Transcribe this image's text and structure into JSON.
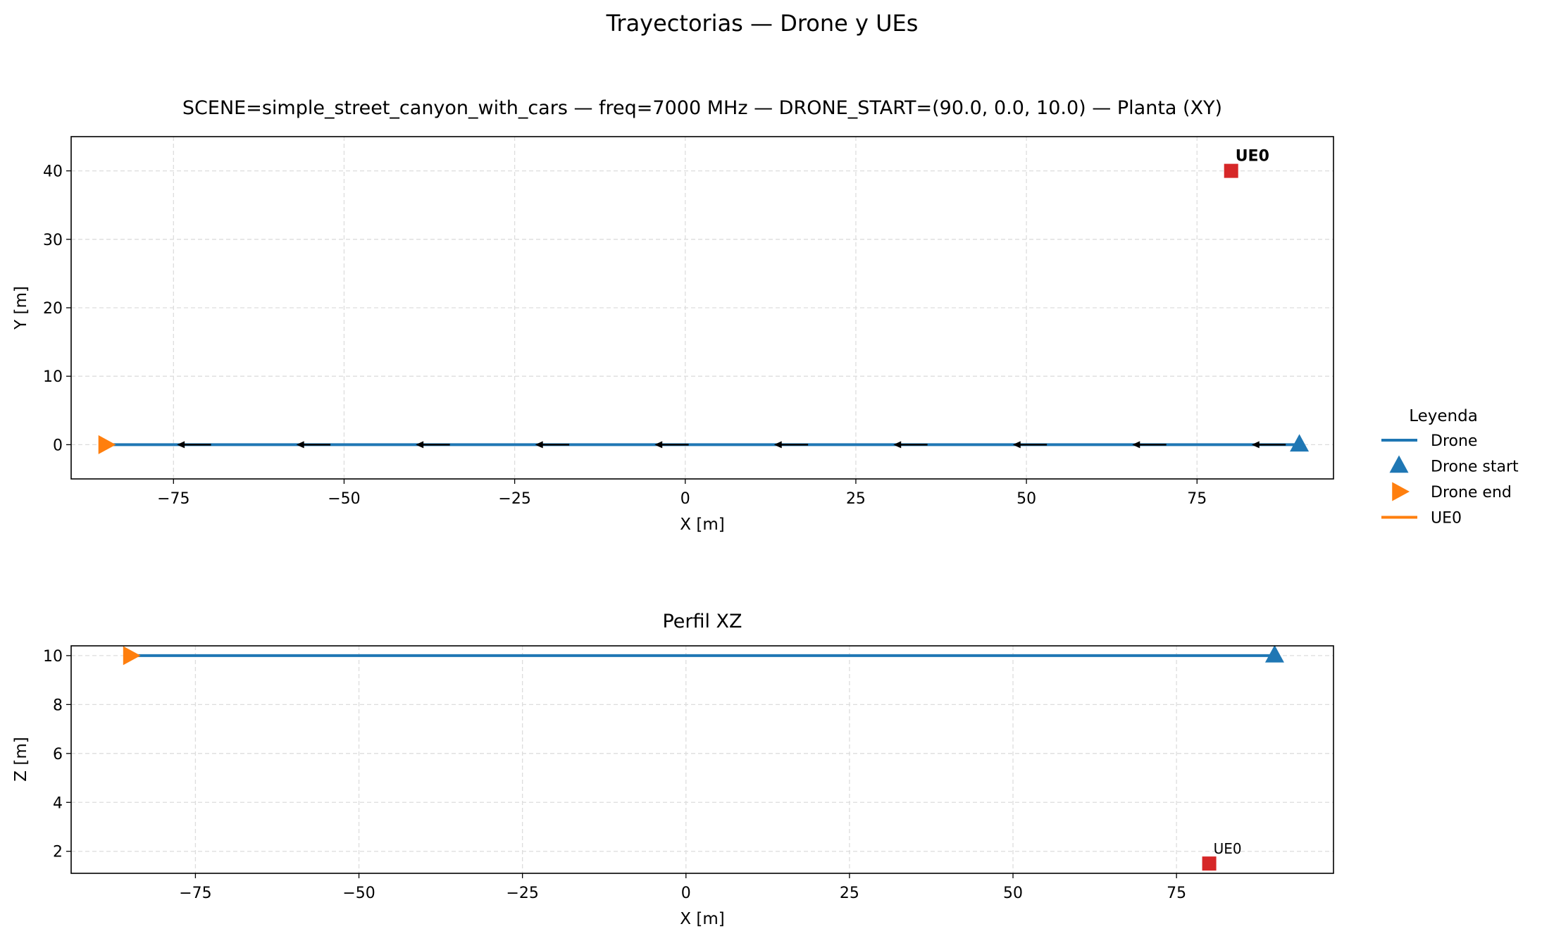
{
  "figure": {
    "suptitle": "Trayectorias — Drone y UEs"
  },
  "colors": {
    "drone": "#1f77b4",
    "drone_end": "#ff7f0e",
    "ue": "#d62728",
    "arrow": "#000000",
    "grid": "#dddddd"
  },
  "legend": {
    "title": "Leyenda",
    "placement": "right, outside",
    "items": [
      {
        "label": "Drone",
        "kind": "line",
        "color": "#1f77b4"
      },
      {
        "label": "Drone start",
        "kind": "triangle-up",
        "color": "#1f77b4"
      },
      {
        "label": "Drone end",
        "kind": "triangle-right",
        "color": "#ff7f0e"
      },
      {
        "label": "UE0",
        "kind": "line",
        "color": "#ff7f0e"
      }
    ]
  },
  "chart_data": [
    {
      "type": "line",
      "title": "SCENE=simple_street_canyon_with_cars — freq=7000 MHz — DRONE_START=(90.0, 0.0, 10.0) — Planta (XY)",
      "xlabel": "X [m]",
      "ylabel": "Y [m]",
      "xlim": [
        -90,
        95
      ],
      "ylim": [
        -5,
        45
      ],
      "xticks": [
        -75,
        -50,
        -25,
        0,
        25,
        50,
        75
      ],
      "xtick_labels": [
        "−75",
        "−50",
        "−25",
        "0",
        "25",
        "50",
        "75"
      ],
      "yticks": [
        0,
        10,
        20,
        30,
        40
      ],
      "ytick_labels": [
        "0",
        "10",
        "20",
        "30",
        "40"
      ],
      "grid": true,
      "series": [
        {
          "name": "Drone",
          "x": [
            90,
            -85
          ],
          "y": [
            0,
            0
          ]
        }
      ],
      "drone_start": {
        "x": 90,
        "y": 0
      },
      "drone_end": {
        "x": -85,
        "y": 0
      },
      "direction_arrows_x": [
        88,
        70.5,
        53,
        35.5,
        18,
        0.5,
        -17,
        -34.5,
        -52,
        -69.5
      ],
      "ues": [
        {
          "label": "UE0",
          "x": 80,
          "y": 40
        }
      ]
    },
    {
      "type": "line",
      "title": "Perfil XZ",
      "xlabel": "X [m]",
      "ylabel": "Z [m]",
      "xlim": [
        -94,
        99
      ],
      "ylim": [
        1.1,
        10.4
      ],
      "xticks": [
        -75,
        -50,
        -25,
        0,
        25,
        50,
        75
      ],
      "xtick_labels": [
        "−75",
        "−50",
        "−25",
        "0",
        "25",
        "50",
        "75"
      ],
      "yticks": [
        2,
        4,
        6,
        8,
        10
      ],
      "ytick_labels": [
        "2",
        "4",
        "6",
        "8",
        "10"
      ],
      "grid": true,
      "series": [
        {
          "name": "Drone",
          "x": [
            90,
            -85
          ],
          "y": [
            10,
            10
          ]
        }
      ],
      "drone_start": {
        "x": 90,
        "y": 10
      },
      "drone_end": {
        "x": -85,
        "y": 10
      },
      "ues": [
        {
          "label": "UE0",
          "x": 80,
          "y": 1.5
        }
      ]
    }
  ]
}
